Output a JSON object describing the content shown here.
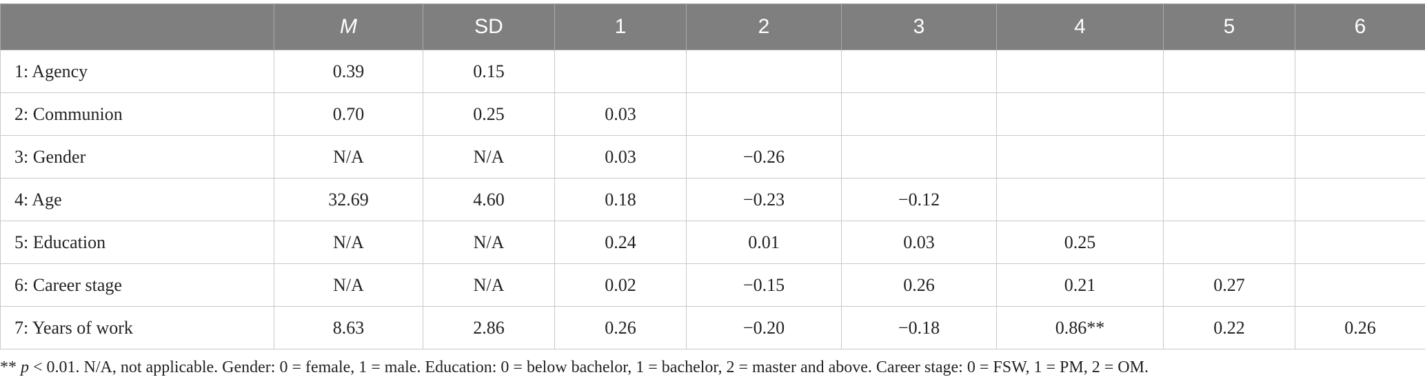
{
  "table": {
    "headers": [
      "",
      "M",
      "SD",
      "1",
      "2",
      "3",
      "4",
      "5",
      "6"
    ],
    "rows": [
      [
        "1: Agency",
        "0.39",
        "0.15",
        "",
        "",
        "",
        "",
        "",
        ""
      ],
      [
        "2: Communion",
        "0.70",
        "0.25",
        "0.03",
        "",
        "",
        "",
        "",
        ""
      ],
      [
        "3: Gender",
        "N/A",
        "N/A",
        "0.03",
        "−0.26",
        "",
        "",
        "",
        ""
      ],
      [
        "4: Age",
        "32.69",
        "4.60",
        "0.18",
        "−0.23",
        "−0.12",
        "",
        "",
        ""
      ],
      [
        "5: Education",
        "N/A",
        "N/A",
        "0.24",
        "0.01",
        "0.03",
        "0.25",
        "",
        ""
      ],
      [
        "6: Career stage",
        "N/A",
        "N/A",
        "0.02",
        "−0.15",
        "0.26",
        "0.21",
        "0.27",
        ""
      ],
      [
        "7: Years of work",
        "8.63",
        "2.86",
        "0.26",
        "−0.20",
        "−0.18",
        "0.86**",
        "0.22",
        "0.26"
      ]
    ]
  },
  "footnote": {
    "stars": "**",
    "p_symbol": "p",
    "text": " < 0.01. N/A, not applicable. Gender: 0 = female, 1 = male. Education: 0 = below bachelor, 1 = bachelor, 2 = master and above. Career stage: 0 = FSW, 1 = PM, 2 = OM."
  },
  "colors": {
    "header_background": "#7f7f7f",
    "header_text": "#ffffff",
    "grid_lines": "#c8c8c8"
  }
}
